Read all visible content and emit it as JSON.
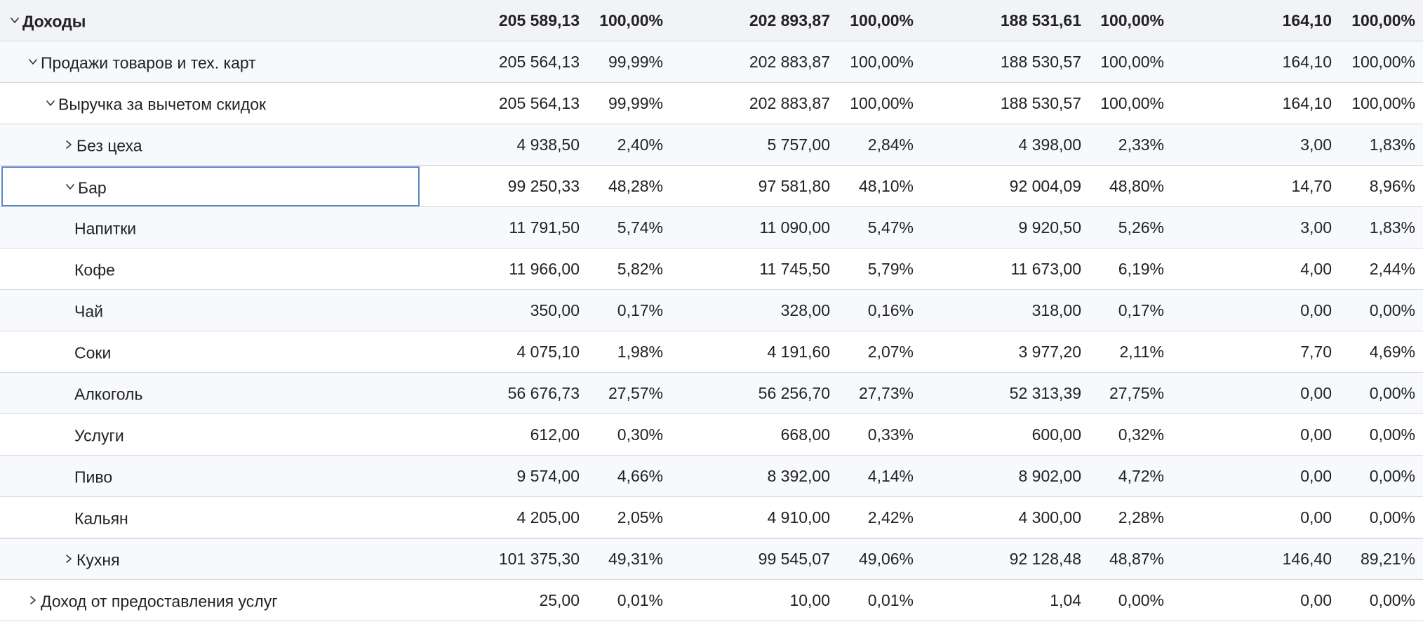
{
  "rows": [
    {
      "name": "Доходы",
      "level": 0,
      "toggle": "expanded",
      "bold": true,
      "values": [
        "205 589,13",
        "100,00%",
        "202 893,87",
        "100,00%",
        "188 531,61",
        "100,00%",
        "164,10",
        "100,00%"
      ]
    },
    {
      "name": "Продажи товаров и тех. карт",
      "level": 1,
      "toggle": "expanded",
      "values": [
        "205 564,13",
        "99,99%",
        "202 883,87",
        "100,00%",
        "188 530,57",
        "100,00%",
        "164,10",
        "100,00%"
      ]
    },
    {
      "name": "Выручка за вычетом скидок",
      "level": 2,
      "toggle": "expanded",
      "values": [
        "205 564,13",
        "99,99%",
        "202 883,87",
        "100,00%",
        "188 530,57",
        "100,00%",
        "164,10",
        "100,00%"
      ]
    },
    {
      "name": "Без цеха",
      "level": 3,
      "toggle": "collapsed",
      "values": [
        "4 938,50",
        "2,40%",
        "5 757,00",
        "2,84%",
        "4 398,00",
        "2,33%",
        "3,00",
        "1,83%"
      ]
    },
    {
      "name": "Бар",
      "level": 3,
      "toggle": "expanded",
      "selected": true,
      "values": [
        "99 250,33",
        "48,28%",
        "97 581,80",
        "48,10%",
        "92 004,09",
        "48,80%",
        "14,70",
        "8,96%"
      ]
    },
    {
      "name": "Напитки",
      "level": 4,
      "toggle": "none",
      "values": [
        "11 791,50",
        "5,74%",
        "11 090,00",
        "5,47%",
        "9 920,50",
        "5,26%",
        "3,00",
        "1,83%"
      ]
    },
    {
      "name": "Кофе",
      "level": 4,
      "toggle": "none",
      "values": [
        "11 966,00",
        "5,82%",
        "11 745,50",
        "5,79%",
        "11 673,00",
        "6,19%",
        "4,00",
        "2,44%"
      ]
    },
    {
      "name": "Чай",
      "level": 4,
      "toggle": "none",
      "values": [
        "350,00",
        "0,17%",
        "328,00",
        "0,16%",
        "318,00",
        "0,17%",
        "0,00",
        "0,00%"
      ]
    },
    {
      "name": "Соки",
      "level": 4,
      "toggle": "none",
      "values": [
        "4 075,10",
        "1,98%",
        "4 191,60",
        "2,07%",
        "3 977,20",
        "2,11%",
        "7,70",
        "4,69%"
      ]
    },
    {
      "name": "Алкоголь",
      "level": 4,
      "toggle": "none",
      "values": [
        "56 676,73",
        "27,57%",
        "56 256,70",
        "27,73%",
        "52 313,39",
        "27,75%",
        "0,00",
        "0,00%"
      ]
    },
    {
      "name": "Услуги",
      "level": 4,
      "toggle": "none",
      "values": [
        "612,00",
        "0,30%",
        "668,00",
        "0,33%",
        "600,00",
        "0,32%",
        "0,00",
        "0,00%"
      ]
    },
    {
      "name": "Пиво",
      "level": 4,
      "toggle": "none",
      "values": [
        "9 574,00",
        "4,66%",
        "8 392,00",
        "4,14%",
        "8 902,00",
        "4,72%",
        "0,00",
        "0,00%"
      ]
    },
    {
      "name": "Кальян",
      "level": 4,
      "toggle": "none",
      "group_end": true,
      "values": [
        "4 205,00",
        "2,05%",
        "4 910,00",
        "2,42%",
        "4 300,00",
        "2,28%",
        "0,00",
        "0,00%"
      ]
    },
    {
      "name": "Кухня",
      "level": 3,
      "toggle": "collapsed",
      "values": [
        "101 375,30",
        "49,31%",
        "99 545,07",
        "49,06%",
        "92 128,48",
        "48,87%",
        "146,40",
        "89,21%"
      ]
    },
    {
      "name": "Доход от предоставления услуг",
      "level": 1,
      "toggle": "collapsed",
      "values": [
        "25,00",
        "0,01%",
        "10,00",
        "0,01%",
        "1,04",
        "0,00%",
        "0,00",
        "0,00%"
      ]
    }
  ],
  "icons": {
    "expanded": "chevron-down-icon",
    "collapsed": "chevron-right-icon"
  },
  "colors": {
    "grid_line": "#d3d8df",
    "selection_border": "#5a86c3",
    "row_alt": "#f7f9fc"
  }
}
